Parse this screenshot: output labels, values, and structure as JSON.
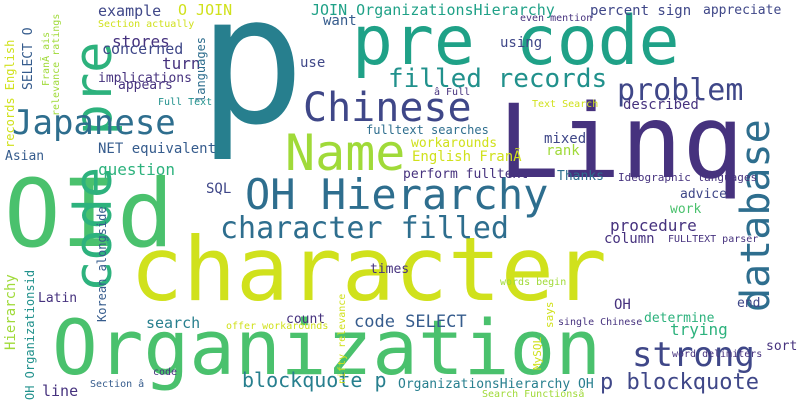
{
  "palette": {
    "background": "#ffffff",
    "purple_dark": "#46327e",
    "indigo": "#3f4788",
    "blue": "#365c8d",
    "steel": "#2e6e8e",
    "teal_blue": "#277f8e",
    "teal": "#21918c",
    "green_teal": "#1fa187",
    "green": "#2db27d",
    "light_green": "#4ac16d",
    "lime": "#73d056",
    "yellow_green": "#a0da39",
    "yellow": "#d0e11c"
  },
  "words": [
    {
      "text": "p",
      "color": "#277f8e"
    },
    {
      "text": "pre code",
      "color": "#1fa187"
    },
    {
      "text": "Linq",
      "color": "#46327e"
    },
    {
      "text": "character",
      "color": "#d0e11c"
    },
    {
      "text": "Organization",
      "color": "#4ac16d"
    },
    {
      "text": "OId",
      "color": "#4ac16d"
    },
    {
      "text": "code pre",
      "color": "#2db27d"
    },
    {
      "text": "OH Hierarchy",
      "color": "#2e6e8e"
    },
    {
      "text": "Name",
      "color": "#a0da39"
    },
    {
      "text": "Chinese",
      "color": "#3f4788"
    },
    {
      "text": "Japanese",
      "color": "#2e6e8e"
    },
    {
      "text": "database",
      "color": "#2e6e8e"
    },
    {
      "text": "problem",
      "color": "#3f4788"
    },
    {
      "text": "filled records",
      "color": "#21918c"
    },
    {
      "text": "character filled",
      "color": "#2e6e8e"
    },
    {
      "text": "strong",
      "color": "#3f4788"
    },
    {
      "text": "blockquote p",
      "color": "#277f8e"
    },
    {
      "text": "p blockquote",
      "color": "#3f4788"
    },
    {
      "text": "code SELECT",
      "color": "#365c8d"
    },
    {
      "text": "JOIN OrganizationsHierarchy",
      "color": "#1fa187"
    },
    {
      "text": "O JOIN",
      "color": "#d0e11c"
    },
    {
      "text": "example",
      "color": "#3f4788"
    },
    {
      "text": "stores",
      "color": "#46327e"
    },
    {
      "text": "concerned",
      "color": "#3f4788"
    },
    {
      "text": "turn",
      "color": "#46327e"
    },
    {
      "text": "implications",
      "color": "#46327e"
    },
    {
      "text": "appears",
      "color": "#46327e"
    },
    {
      "text": "question",
      "color": "#2db27d"
    },
    {
      "text": "NET equivalent",
      "color": "#365c8d"
    },
    {
      "text": "SQL",
      "color": "#3f4788"
    },
    {
      "text": "use",
      "color": "#3f4788"
    },
    {
      "text": "using",
      "color": "#3f4788"
    },
    {
      "text": "want",
      "color": "#365c8d"
    },
    {
      "text": "percent sign",
      "color": "#3f4788"
    },
    {
      "text": "appreciate",
      "color": "#3f4788"
    },
    {
      "text": "described",
      "color": "#46327e"
    },
    {
      "text": "mixed",
      "color": "#3f4788"
    },
    {
      "text": "rank",
      "color": "#a0da39"
    },
    {
      "text": "Thanks",
      "color": "#2e6e8e"
    },
    {
      "text": "advice",
      "color": "#3f4788"
    },
    {
      "text": "work",
      "color": "#4ac16d"
    },
    {
      "text": "procedure",
      "color": "#46327e"
    },
    {
      "text": "column",
      "color": "#46327e"
    },
    {
      "text": "search",
      "color": "#277f8e"
    },
    {
      "text": "trying",
      "color": "#2db27d"
    },
    {
      "text": "determine",
      "color": "#2db27d"
    },
    {
      "text": "count",
      "color": "#46327e"
    },
    {
      "text": "times",
      "color": "#46327e"
    },
    {
      "text": "sort",
      "color": "#46327e"
    },
    {
      "text": "end",
      "color": "#3f4788"
    },
    {
      "text": "line",
      "color": "#46327e"
    },
    {
      "text": "OrganizationsHierarchy OH",
      "color": "#277f8e"
    },
    {
      "text": "Latin",
      "color": "#46327e"
    },
    {
      "text": "Asian",
      "color": "#365c8d"
    },
    {
      "text": "SELECT O",
      "color": "#365c8d"
    },
    {
      "text": "records English",
      "color": "#d0e11c"
    },
    {
      "text": "Hierarchy",
      "color": "#a0da39"
    },
    {
      "text": "OH Organizationsid",
      "color": "#21918c"
    },
    {
      "text": "Korean alongside",
      "color": "#365c8d"
    },
    {
      "text": "languages",
      "color": "#2e6e8e"
    },
    {
      "text": "workarounds",
      "color": "#d0e11c"
    },
    {
      "text": "English FranÃ",
      "color": "#d0e11c"
    },
    {
      "text": "perform fulltext",
      "color": "#46327e"
    },
    {
      "text": "fulltext searches",
      "color": "#2e6e8e"
    },
    {
      "text": "Ideographic languages",
      "color": "#46327e"
    },
    {
      "text": "FULLTEXT parser",
      "color": "#46327e"
    },
    {
      "text": "words begin",
      "color": "#a0da39"
    },
    {
      "text": "offer workarounds",
      "color": "#d0e11c"
    },
    {
      "text": "single Chinese",
      "color": "#46327e"
    },
    {
      "text": "word delimiters",
      "color": "#46327e"
    },
    {
      "text": "Search Functionsâ",
      "color": "#a0da39"
    },
    {
      "text": "Section â",
      "color": "#365c8d"
    },
    {
      "text": "code",
      "color": "#46327e"
    },
    {
      "text": "Section actually",
      "color": "#d0e11c"
    },
    {
      "text": "Full Text",
      "color": "#21918c"
    },
    {
      "text": "â Full",
      "color": "#46327e"
    },
    {
      "text": "Text Search",
      "color": "#d0e11c"
    },
    {
      "text": "even mention",
      "color": "#46327e"
    },
    {
      "text": "FranÃ ais",
      "color": "#a0da39"
    },
    {
      "text": "relevance ratings",
      "color": "#a0da39"
    },
    {
      "text": "nifty relevance",
      "color": "#d0e11c"
    },
    {
      "text": "MySQL",
      "color": "#d0e11c"
    },
    {
      "text": "says",
      "color": "#d0e11c"
    },
    {
      "text": "OH",
      "color": "#46327e"
    }
  ]
}
